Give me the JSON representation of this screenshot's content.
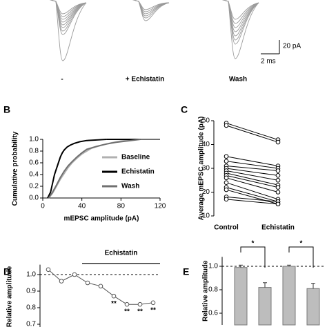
{
  "traces": {
    "conditions": [
      "-",
      "+ Echistatin",
      "Wash"
    ],
    "scale_bar": {
      "y_label": "20 pA",
      "x_label": "2 ms"
    }
  },
  "chart_data": [
    {
      "type": "cumulative",
      "label": "B",
      "xlabel": "mEPSC amplitude (pA)",
      "ylabel": "Cumulative probability",
      "xlim": [
        0,
        120
      ],
      "xticks": [
        0,
        40,
        80,
        120
      ],
      "ylim": [
        0,
        1
      ],
      "yticks": [
        {
          "value": 0,
          "label": "0.0"
        },
        0.2,
        0.4,
        0.6,
        0.8,
        {
          "value": 1,
          "label": "1.0"
        }
      ],
      "series": [
        {
          "name": "Baseline",
          "color": "#b0b0b0",
          "x": [
            6,
            10,
            14,
            18,
            22,
            26,
            30,
            35,
            40,
            45,
            50,
            60,
            70,
            80,
            95
          ],
          "values": [
            0,
            0.08,
            0.2,
            0.32,
            0.42,
            0.52,
            0.6,
            0.68,
            0.75,
            0.8,
            0.85,
            0.9,
            0.94,
            0.97,
            1.0
          ]
        },
        {
          "name": "Echistatin",
          "color": "#000000",
          "x": [
            5,
            8,
            10,
            12,
            14,
            16,
            18,
            20,
            22,
            25,
            28,
            32,
            38,
            45,
            55,
            65
          ],
          "values": [
            0,
            0.1,
            0.25,
            0.4,
            0.5,
            0.6,
            0.7,
            0.77,
            0.82,
            0.87,
            0.9,
            0.93,
            0.96,
            0.98,
            0.99,
            1.0
          ]
        },
        {
          "name": "Wash",
          "color": "#707070",
          "x": [
            6,
            10,
            14,
            18,
            22,
            26,
            30,
            35,
            40,
            45,
            55,
            65,
            75,
            90,
            100
          ],
          "values": [
            0,
            0.1,
            0.22,
            0.35,
            0.46,
            0.55,
            0.62,
            0.7,
            0.77,
            0.83,
            0.88,
            0.92,
            0.95,
            0.98,
            1.0
          ]
        }
      ]
    },
    {
      "type": "paired",
      "label": "C",
      "ylabel": "Average mEPSC amplitude (pA)",
      "categories": [
        "Control",
        "Echistatin"
      ],
      "ylim": [
        10,
        50
      ],
      "yticks": [
        10,
        20,
        30,
        40,
        50
      ],
      "series": [
        {
          "values": [
            49,
            42
          ]
        },
        {
          "values": [
            48,
            41
          ]
        },
        {
          "values": [
            35,
            31
          ]
        },
        {
          "values": [
            33,
            30
          ]
        },
        {
          "values": [
            31,
            29
          ]
        },
        {
          "values": [
            30,
            27
          ]
        },
        {
          "values": [
            29,
            25
          ]
        },
        {
          "values": [
            28,
            23
          ]
        },
        {
          "values": [
            27,
            22
          ]
        },
        {
          "values": [
            26,
            20
          ]
        },
        {
          "values": [
            24,
            17
          ]
        },
        {
          "values": [
            22,
            16
          ]
        },
        {
          "values": [
            18,
            16
          ]
        },
        {
          "values": [
            17,
            15
          ]
        },
        {
          "values": [
            21,
            15
          ]
        }
      ]
    },
    {
      "type": "line",
      "label": "D",
      "ylabel": "Relative amplitude",
      "annotation": "Echistatin",
      "categories": [
        null,
        null,
        null,
        null,
        null,
        null,
        null,
        null,
        null
      ],
      "values": [
        1.03,
        0.96,
        1.0,
        0.95,
        0.93,
        0.87,
        0.82,
        0.82,
        0.83
      ],
      "errors": [
        0.005,
        0.005,
        0.005,
        0.012,
        0.012,
        0.013,
        0.012,
        0.012,
        0.013
      ],
      "significance": [
        null,
        null,
        null,
        null,
        null,
        "**",
        "**",
        "**",
        "**"
      ],
      "ylim": [
        0.66,
        1.06
      ],
      "yticks": [
        0.7,
        0.8,
        0.9,
        {
          "value": 1,
          "label": "1.0"
        }
      ],
      "reference_line": 1
    },
    {
      "type": "bar",
      "label": "E",
      "ylabel": "Relative amplitude",
      "categories": [
        null,
        null,
        null,
        null
      ],
      "values": [
        0.99,
        0.82,
        1.0,
        0.81
      ],
      "errors": [
        0.02,
        0.04,
        0.01,
        0.045
      ],
      "color": "#bdbdbd",
      "significance": [
        {
          "pair": [
            0,
            1
          ],
          "text": "*"
        },
        {
          "pair": [
            2,
            3
          ],
          "text": "*"
        }
      ],
      "ylim": [
        0.5,
        1.08
      ],
      "yticks": [
        0.6,
        0.8,
        {
          "value": 1,
          "label": "1.0"
        }
      ],
      "reference_line": 1
    }
  ]
}
